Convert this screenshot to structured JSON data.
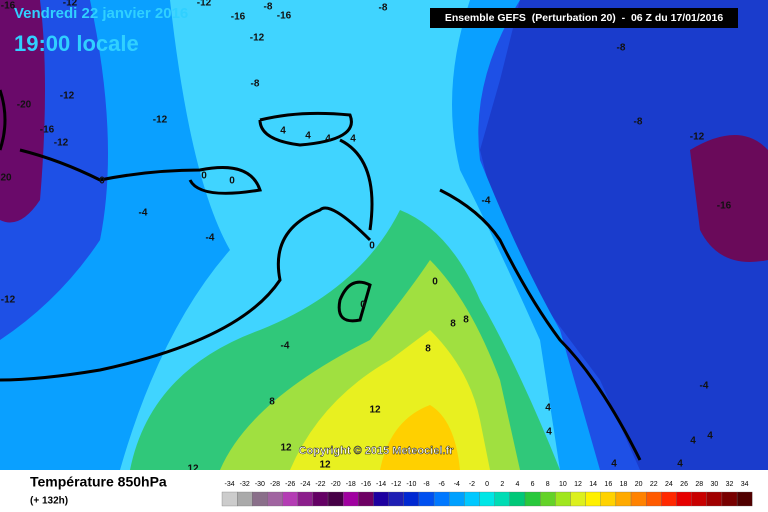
{
  "header": {
    "date": "Vendredi 22 janvier 2016",
    "time": "19:00 locale",
    "run": "Ensemble GEFS  (Perturbation 20)  -  06 Z du 17/01/2016"
  },
  "copyright": "Copyright © 2015 Meteociel.fr",
  "map_labels": [
    "-16",
    "-12",
    "-12",
    "-16",
    "-8",
    "-16",
    "-8",
    "-12",
    "-8",
    "-8",
    "-12",
    "-20",
    "-12",
    "-8",
    "-16",
    "-12",
    "-12",
    "20",
    "0",
    "0",
    "0",
    "-4",
    "-4",
    "-16",
    "-4",
    "0",
    "-12",
    "0",
    "0",
    "-4",
    "8",
    "8",
    "8",
    "8",
    "12",
    "4",
    "4",
    "-4",
    "12",
    "4",
    "4",
    "4",
    "4",
    "12",
    "12",
    "4",
    "4",
    "4",
    "4"
  ],
  "legend": {
    "title": "Température 850hPa",
    "subtitle": "(+ 132h)",
    "scale": [
      {
        "label": "-34",
        "color": "#cccccc"
      },
      {
        "label": "-32",
        "color": "#aaaaaa"
      },
      {
        "label": "-30",
        "color": "#8a6f8a"
      },
      {
        "label": "-28",
        "color": "#a064a0"
      },
      {
        "label": "-26",
        "color": "#b43cb4"
      },
      {
        "label": "-24",
        "color": "#8c1e8c"
      },
      {
        "label": "-22",
        "color": "#640064"
      },
      {
        "label": "-20",
        "color": "#460046"
      },
      {
        "label": "-18",
        "color": "#a000a0"
      },
      {
        "label": "-16",
        "color": "#6e0064"
      },
      {
        "label": "-14",
        "color": "#1e00a0"
      },
      {
        "label": "-12",
        "color": "#1e1eb4"
      },
      {
        "label": "-10",
        "color": "#0028d2"
      },
      {
        "label": "-8",
        "color": "#0050f0"
      },
      {
        "label": "-6",
        "color": "#0078ff"
      },
      {
        "label": "-4",
        "color": "#00a0ff"
      },
      {
        "label": "-2",
        "color": "#00c8ff"
      },
      {
        "label": "0",
        "color": "#00e6e6"
      },
      {
        "label": "2",
        "color": "#00dcb4"
      },
      {
        "label": "4",
        "color": "#00c878"
      },
      {
        "label": "6",
        "color": "#28c83c"
      },
      {
        "label": "8",
        "color": "#64d228"
      },
      {
        "label": "10",
        "color": "#a0e61e"
      },
      {
        "label": "12",
        "color": "#dcf01e"
      },
      {
        "label": "14",
        "color": "#fff000"
      },
      {
        "label": "16",
        "color": "#ffd200"
      },
      {
        "label": "18",
        "color": "#ffaa00"
      },
      {
        "label": "20",
        "color": "#ff8200"
      },
      {
        "label": "22",
        "color": "#ff5a00"
      },
      {
        "label": "24",
        "color": "#ff2800"
      },
      {
        "label": "26",
        "color": "#e60000"
      },
      {
        "label": "28",
        "color": "#c80000"
      },
      {
        "label": "30",
        "color": "#a00000"
      },
      {
        "label": "32",
        "color": "#780000"
      },
      {
        "label": "34",
        "color": "#500000"
      }
    ]
  }
}
